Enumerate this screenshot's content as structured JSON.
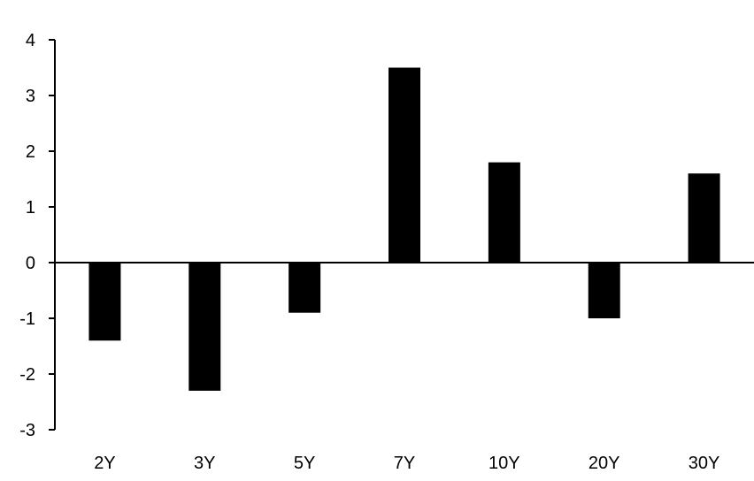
{
  "chart_data": {
    "type": "bar",
    "title": "",
    "xlabel": "",
    "ylabel": "",
    "categories": [
      "2Y",
      "3Y",
      "5Y",
      "7Y",
      "10Y",
      "20Y",
      "30Y"
    ],
    "values": [
      -1.4,
      -2.3,
      -0.9,
      3.5,
      1.8,
      -1.0,
      1.6
    ],
    "ylim": [
      -3,
      4
    ],
    "yticks": [
      "-3",
      "-2",
      "-1",
      "0",
      "1",
      "2",
      "3",
      "4"
    ],
    "grid": false,
    "legend": "none",
    "bar_color": "#000000"
  }
}
